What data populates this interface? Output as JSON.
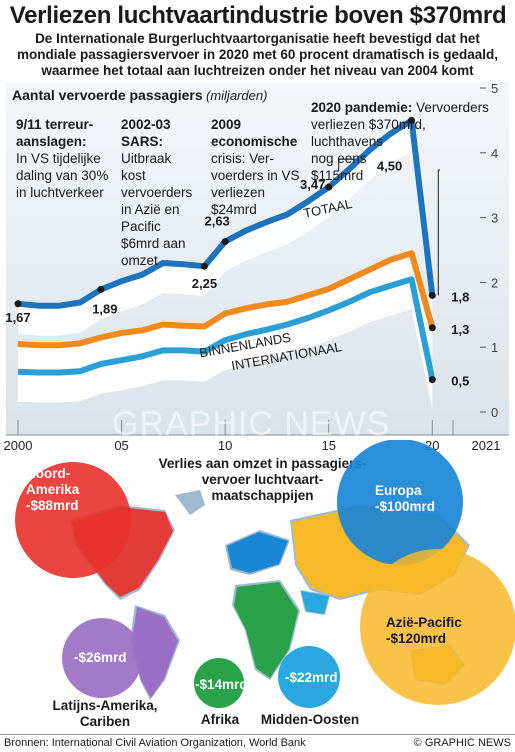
{
  "headline": "Verliezen luchtvaartindustrie boven $370mrd",
  "subhead_lines": [
    "De Internationale Burgerluchtvaartorganisatie heeft bevestigd dat het",
    "mondiale passagiersvervoer in 2020 met 60 procent dramatisch is gedaald,",
    "waarmee het totaal aan luchtreizen onder het niveau van 2004 komt"
  ],
  "chart_data": {
    "type": "line",
    "title": "Aantal vervoerde passagiers",
    "unit": "(miljarden)",
    "x_tick_labels": [
      "2000",
      "05",
      "10",
      "15",
      "20",
      "2021"
    ],
    "y_tick_labels": [
      "0",
      "1",
      "2",
      "3",
      "4",
      "5"
    ],
    "ylim": [
      0,
      5
    ],
    "xlim": [
      2000,
      2021
    ],
    "grid": false,
    "series": [
      {
        "name": "TOTAAL",
        "color": "#1e73be",
        "x": [
          2000,
          2001,
          2002,
          2003,
          2004,
          2005,
          2006,
          2007,
          2008,
          2009,
          2010,
          2011,
          2012,
          2013,
          2014,
          2015,
          2016,
          2017,
          2018,
          2019,
          2020
        ],
        "y": [
          1.67,
          1.64,
          1.64,
          1.69,
          1.89,
          2.02,
          2.12,
          2.3,
          2.28,
          2.25,
          2.63,
          2.8,
          2.93,
          3.05,
          3.25,
          3.47,
          3.75,
          4.05,
          4.3,
          4.5,
          1.8
        ]
      },
      {
        "name": "BINNENLANDS",
        "color": "#f08a1c",
        "x": [
          2000,
          2001,
          2002,
          2003,
          2004,
          2005,
          2006,
          2007,
          2008,
          2009,
          2010,
          2011,
          2012,
          2013,
          2014,
          2015,
          2016,
          2017,
          2018,
          2019,
          2020
        ],
        "y": [
          1.05,
          1.03,
          1.03,
          1.06,
          1.15,
          1.22,
          1.26,
          1.35,
          1.33,
          1.32,
          1.52,
          1.6,
          1.66,
          1.7,
          1.8,
          1.9,
          2.05,
          2.2,
          2.35,
          2.45,
          1.3
        ]
      },
      {
        "name": "INTERNATIONAAL",
        "color": "#2a9fd6",
        "x": [
          2000,
          2001,
          2002,
          2003,
          2004,
          2005,
          2006,
          2007,
          2008,
          2009,
          2010,
          2011,
          2012,
          2013,
          2014,
          2015,
          2016,
          2017,
          2018,
          2019,
          2020
        ],
        "y": [
          0.62,
          0.61,
          0.61,
          0.63,
          0.74,
          0.8,
          0.86,
          0.95,
          0.95,
          0.93,
          1.11,
          1.2,
          1.27,
          1.35,
          1.45,
          1.57,
          1.7,
          1.85,
          1.95,
          2.05,
          0.5
        ]
      }
    ],
    "data_labels": [
      {
        "series": "TOTAAL",
        "x": 2000,
        "text": "1,67"
      },
      {
        "series": "TOTAAL",
        "x": 2004,
        "text": "1,89"
      },
      {
        "series": "TOTAAL",
        "x": 2009,
        "text": "2,25"
      },
      {
        "series": "TOTAAL",
        "x": 2010,
        "text": "2,63"
      },
      {
        "series": "TOTAAL",
        "x": 2015,
        "text": "3,47"
      },
      {
        "series": "TOTAAL",
        "x": 2019,
        "text": "4,50"
      },
      {
        "series": "TOTAAL",
        "x": 2020,
        "text": "1,8"
      },
      {
        "series": "BINNENLANDS",
        "x": 2020,
        "text": "1,3"
      },
      {
        "series": "INTERNATIONAAL",
        "x": 2020,
        "text": "0,5"
      }
    ],
    "annotations": [
      {
        "title": "9/11 terreur-",
        "title2": "aanslagen:",
        "lines": [
          "In VS tijdelijke",
          "daling van 30%",
          "in luchtverkeer"
        ]
      },
      {
        "title": "2002-03",
        "title2": "SARS:",
        "lines": [
          "Uitbraak",
          "kost",
          "vervoerders",
          "in Azië en",
          "Pacific",
          "$6mrd aan",
          "omzet"
        ]
      },
      {
        "title": "2009",
        "title2": "economische",
        "lines": [
          "crisis: Ver-",
          "voerders in VS",
          "verliezen",
          "$24mrd"
        ]
      },
      {
        "title": "2020 pandemie:",
        "title2": "",
        "lines": [
          "Vervoerders",
          "verliezen $370mrd, luchthavens",
          "nog eens",
          "$115mrd"
        ]
      }
    ]
  },
  "map": {
    "title_lines": [
      "Verlies aan omzet in passagiers-",
      "vervoer luchtvaart-",
      "maatschappijen"
    ],
    "regions": [
      {
        "name_lines": [
          "Noord-",
          "Amerika"
        ],
        "value": "-$88mrd",
        "color": "#e8312b"
      },
      {
        "name_lines": [
          "Europa"
        ],
        "value": "-$100mrd",
        "color": "#1a86d6"
      },
      {
        "name_lines": [
          "Azië-Pacific"
        ],
        "value": "-$120mrd",
        "color": "#f7b928"
      },
      {
        "name_lines": [
          "Latijns-Amerika,",
          "Cariben"
        ],
        "value": "-$26mrd",
        "color": "#9b6fc6"
      },
      {
        "name_lines": [
          "Afrika"
        ],
        "value": "-$14mrd",
        "color": "#2aa24a"
      },
      {
        "name_lines": [
          "Midden-Oosten"
        ],
        "value": "-$22mrd",
        "color": "#29a8e0"
      }
    ]
  },
  "watermark": "GRAPHIC NEWS",
  "watermark_sub": "INTERNATIONAL",
  "footer": {
    "source": "Bronnen: International Civil Aviation Organization, World Bank",
    "copyright": "© GRAPHIC NEWS"
  }
}
